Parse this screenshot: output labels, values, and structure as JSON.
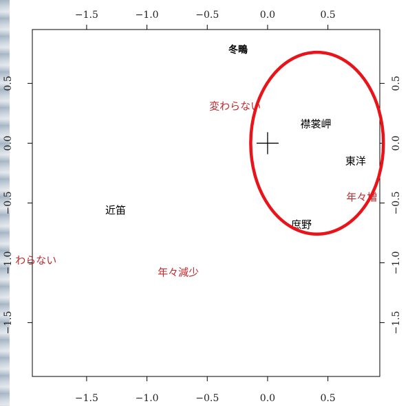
{
  "chart_data": {
    "type": "scatter",
    "title": "冬鴫",
    "xlabel": "",
    "ylabel": "",
    "xlim": [
      -1.95,
      0.93
    ],
    "ylim": [
      -1.95,
      0.95
    ],
    "top_xlim": [
      -1.95,
      0.93
    ],
    "right_ylim": [
      -1.95,
      0.95
    ],
    "grid": false,
    "x_ticks": [
      -1.5,
      -1.0,
      -0.5,
      0.0,
      0.5
    ],
    "y_ticks": [
      0.5,
      0.0,
      -0.5,
      -1.0,
      -1.5
    ],
    "x_tick_labels": [
      "−1.5",
      "−1.0",
      "−0.5",
      "0.0",
      "0.5"
    ],
    "y_tick_labels": [
      "0.5",
      "0.0",
      "−0.5",
      "−1.0",
      "−1.5"
    ],
    "top_tick_labels": [
      "−1.5",
      "−1.0",
      "−0.5",
      "0.0",
      "0.5"
    ],
    "right_tick_labels": [
      "0.5",
      "0.0",
      "−0.5",
      "−1.0",
      "−1.5"
    ],
    "origin_marker": {
      "x": 0.0,
      "y": 0.0,
      "symbol": "+"
    },
    "highlight_ellipse": {
      "cx": 0.41,
      "cy": 0.0,
      "rx": 0.55,
      "ry": 0.76,
      "color": "#e8141a"
    },
    "series": [
      {
        "color": "#000000",
        "points": [
          {
            "x": 0.4,
            "y": 0.16,
            "label": "襟裳岬"
          },
          {
            "x": 0.73,
            "y": -0.15,
            "label": "東洋"
          },
          {
            "x": 0.28,
            "y": -0.68,
            "label": "庶野"
          },
          {
            "x": -1.26,
            "y": -0.56,
            "label": "近笛"
          }
        ]
      },
      {
        "color": "#c0282d",
        "points": [
          {
            "x": -0.27,
            "y": 0.31,
            "label": "変わらない"
          },
          {
            "x": 0.78,
            "y": -0.45,
            "label": "年々増"
          },
          {
            "x": -1.92,
            "y": -0.98,
            "label": "わらない"
          },
          {
            "x": -0.74,
            "y": -1.08,
            "label": "年々減少"
          }
        ]
      }
    ]
  }
}
